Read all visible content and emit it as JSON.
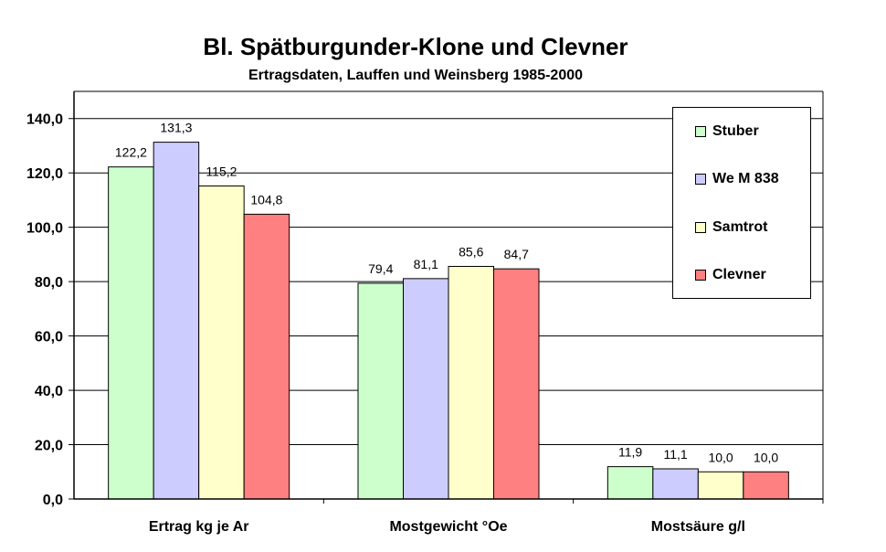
{
  "chart_data": {
    "type": "bar",
    "title": "Bl. Spätburgunder-Klone und Clevner",
    "subtitle": "Ertragsdaten, Lauffen und Weinsberg 1985-2000",
    "categories": [
      "Ertrag kg je Ar",
      "Mostgewicht °Oe",
      "Mostsäure g/l"
    ],
    "series": [
      {
        "name": "Stuber",
        "color": "#ccffcc",
        "values": [
          122.2,
          79.4,
          11.9
        ],
        "labels": [
          "122,2",
          "79,4",
          "11,9"
        ]
      },
      {
        "name": "We M 838",
        "color": "#ccccff",
        "values": [
          131.3,
          81.1,
          11.1
        ],
        "labels": [
          "131,3",
          "81,1",
          "11,1"
        ]
      },
      {
        "name": "Samtrot",
        "color": "#ffffcc",
        "values": [
          115.2,
          85.6,
          10.0
        ],
        "labels": [
          "115,2",
          "85,6",
          "10,0"
        ]
      },
      {
        "name": "Clevner",
        "color": "#ff8080",
        "values": [
          104.8,
          84.7,
          10.0
        ],
        "labels": [
          "104,8",
          "84,7",
          "10,0"
        ]
      }
    ],
    "ylim": [
      0,
      150
    ],
    "yticks": [
      0,
      20,
      40,
      60,
      80,
      100,
      120,
      140
    ],
    "ytick_labels": [
      "0,0",
      "20,0",
      "40,0",
      "60,0",
      "80,0",
      "100,0",
      "120,0",
      "140,0"
    ],
    "grid": true,
    "legend_position": "top-right"
  }
}
